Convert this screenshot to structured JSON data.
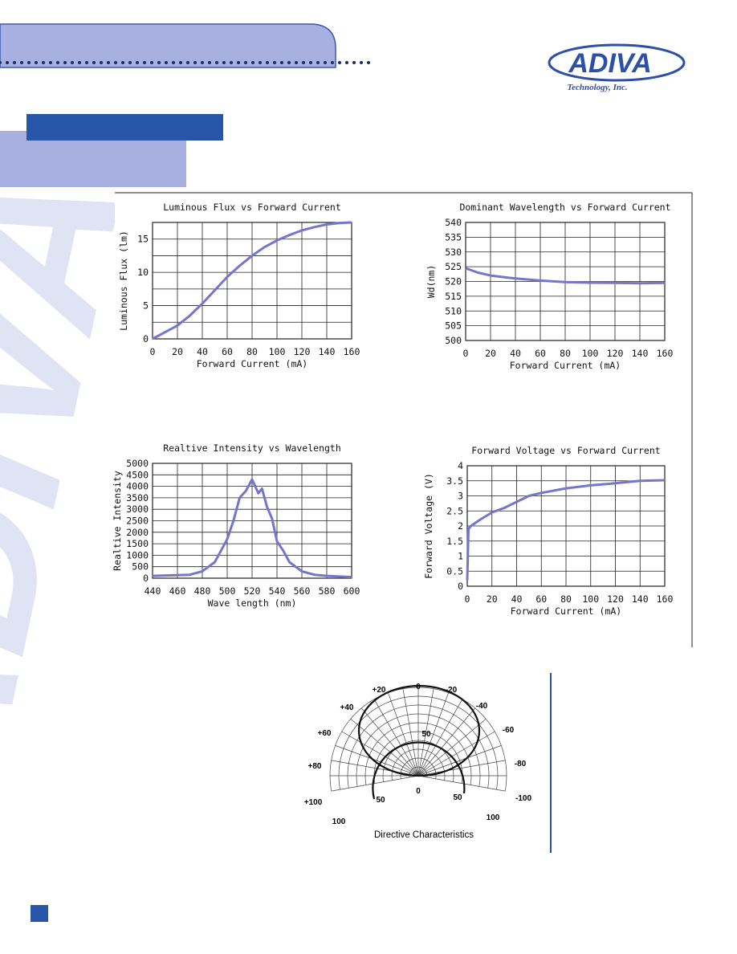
{
  "chart_data": [
    {
      "type": "line",
      "title": "Luminous Flux vs Forward Current",
      "x_label": "Forward Current (mA)",
      "y_label": "Luminous Flux (lm)",
      "x": [
        0,
        10,
        20,
        30,
        40,
        50,
        60,
        70,
        80,
        90,
        100,
        110,
        120,
        130,
        140,
        150,
        160
      ],
      "series": [
        {
          "name": "Luminous Flux",
          "color": "#7575cc",
          "values": [
            0,
            1,
            2,
            3.5,
            5.3,
            7.3,
            9.3,
            11,
            12.5,
            13.8,
            14.8,
            15.6,
            16.3,
            16.8,
            17.2,
            17.4,
            17.5
          ]
        }
      ],
      "xlim": [
        0,
        160
      ],
      "xticks": [
        0,
        20,
        40,
        60,
        80,
        100,
        120,
        140,
        160
      ],
      "ylim": [
        0,
        17.5
      ],
      "yticks": [
        0,
        5,
        10,
        15
      ],
      "minor_yticks": [
        2.5,
        7.5,
        12.5,
        17.5
      ],
      "grid": true
    },
    {
      "type": "line",
      "title": "Dominant Wavelength vs Forward Current",
      "x_label": "Forward Current (mA)",
      "y_label": "Wd(nm)",
      "x": [
        0,
        10,
        20,
        30,
        40,
        60,
        80,
        100,
        120,
        140,
        160
      ],
      "series": [
        {
          "name": "Dominant Wavelength",
          "color": "#7575cc",
          "values": [
            524.5,
            523,
            522,
            521.5,
            521,
            520.3,
            519.8,
            519.6,
            519.5,
            519.4,
            519.5
          ]
        }
      ],
      "xlim": [
        0,
        160
      ],
      "xticks": [
        0,
        20,
        40,
        60,
        80,
        100,
        120,
        140,
        160
      ],
      "ylim": [
        500,
        540
      ],
      "yticks": [
        500,
        505,
        510,
        515,
        520,
        525,
        530,
        535,
        540
      ],
      "grid": true
    },
    {
      "type": "line",
      "title": "Realtive Intensity vs Wavelength",
      "x_label": "Wave length (nm)",
      "y_label": "Realtive Intensity",
      "x": [
        440,
        470,
        480,
        490,
        495,
        500,
        505,
        510,
        515,
        520,
        525,
        528,
        532,
        536,
        540,
        545,
        550,
        560,
        570,
        580,
        600
      ],
      "series": [
        {
          "name": "Realtive Intensity",
          "color": "#7575cc",
          "values": [
            100,
            150,
            300,
            700,
            1200,
            1700,
            2500,
            3500,
            3800,
            4300,
            3700,
            3900,
            3100,
            2600,
            1600,
            1200,
            700,
            300,
            150,
            100,
            50
          ]
        }
      ],
      "xlim": [
        440,
        600
      ],
      "xticks": [
        440,
        460,
        480,
        500,
        520,
        540,
        560,
        580,
        600
      ],
      "ylim": [
        0,
        5000
      ],
      "yticks": [
        0,
        500,
        1000,
        1500,
        2000,
        2500,
        3000,
        3500,
        4000,
        4500,
        5000
      ],
      "grid": true
    },
    {
      "type": "line",
      "title": "Forward Voltage vs Forward Current",
      "x_label": "Forward Current (mA)",
      "y_label": "Forward Voltage (V)",
      "x": [
        0,
        1,
        3,
        10,
        20,
        30,
        40,
        50,
        60,
        80,
        100,
        120,
        140,
        160
      ],
      "series": [
        {
          "name": "Forward Voltage",
          "color": "#7575cc",
          "values": [
            0.2,
            1.9,
            2,
            2.2,
            2.45,
            2.6,
            2.8,
            3,
            3.1,
            3.25,
            3.35,
            3.42,
            3.5,
            3.52
          ]
        }
      ],
      "xlim": [
        0,
        160
      ],
      "xticks": [
        0,
        20,
        40,
        60,
        80,
        100,
        120,
        140,
        160
      ],
      "ylim": [
        0,
        4
      ],
      "yticks": [
        0,
        0.5,
        1,
        1.5,
        2,
        2.5,
        3,
        3.5,
        4
      ],
      "grid": true
    }
  ],
  "logo": {
    "name": "ADIVA",
    "tagline": "Technology, Inc."
  },
  "watermark": "ADIVA",
  "polar": {
    "angle_labels": [
      "+100",
      "+80",
      "+60",
      "+40",
      "+20",
      "0",
      "-20",
      "-40",
      "-60",
      "-80",
      "-100"
    ],
    "radius_labels": [
      "50",
      "50",
      "50",
      "100",
      "100",
      "0"
    ],
    "caption": "Directive Characteristics"
  }
}
